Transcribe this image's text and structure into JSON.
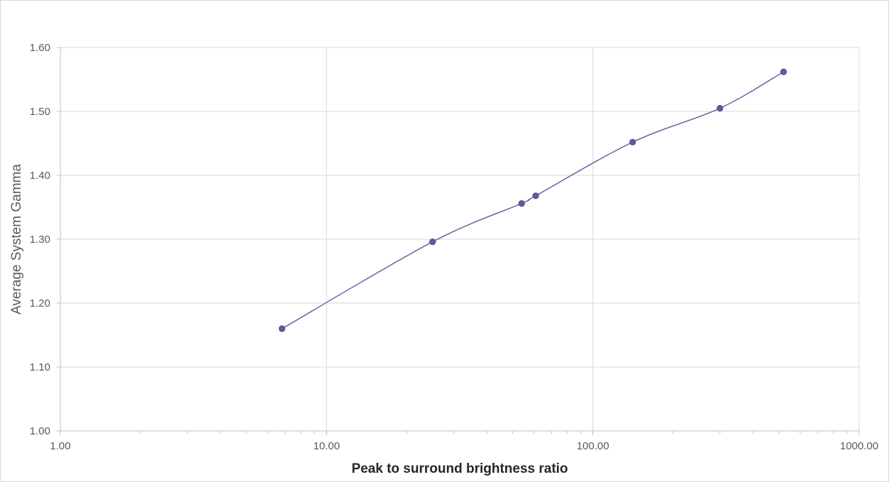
{
  "chart_data": {
    "type": "scatter",
    "title": "",
    "xlabel": "Peak to surround brightness ratio",
    "ylabel": "Average System Gamma",
    "x_scale": "log",
    "xlim": [
      1,
      1000
    ],
    "ylim": [
      1.0,
      1.6
    ],
    "x_ticks": [
      1,
      10,
      100,
      1000
    ],
    "x_tick_labels": [
      "1.00",
      "10.00",
      "100.00",
      "1000.00"
    ],
    "y_ticks": [
      1.0,
      1.1,
      1.2,
      1.3,
      1.4,
      1.5,
      1.6
    ],
    "y_tick_labels": [
      "1.00",
      "1.10",
      "1.20",
      "1.30",
      "1.40",
      "1.50",
      "1.60"
    ],
    "grid": true,
    "legend": "none",
    "smooth_line": true,
    "series": [
      {
        "color": "#5b5b9e",
        "x": [
          6.8,
          25,
          54,
          61,
          141,
          300,
          520
        ],
        "y": [
          1.16,
          1.296,
          1.356,
          1.368,
          1.452,
          1.505,
          1.562
        ]
      }
    ]
  }
}
